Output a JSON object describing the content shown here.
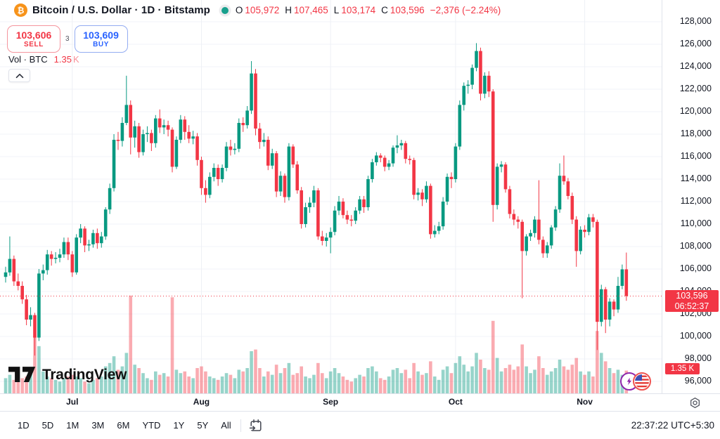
{
  "header": {
    "symbol_icon": "₿",
    "title": "Bitcoin / U.S. Dollar · 1D · Bitstamp",
    "ohlc": {
      "o_label": "O",
      "o": "105,972",
      "h_label": "H",
      "h": "107,465",
      "l_label": "L",
      "l": "103,174",
      "c_label": "C",
      "c": "103,596",
      "change": "−2,376 (−2.24%)"
    },
    "sell": {
      "price": "103,606",
      "label": "SELL"
    },
    "spread": "3",
    "buy": {
      "price": "103,609",
      "label": "BUY"
    },
    "volume": {
      "label": "Vol · BTC",
      "value": "1.35",
      "unit": "K"
    }
  },
  "price_axis": {
    "ticks": [
      "128,000",
      "126,000",
      "124,000",
      "122,000",
      "120,000",
      "118,000",
      "116,000",
      "114,000",
      "112,000",
      "110,000",
      "108,000",
      "106,000",
      "104,000",
      "102,000",
      "100,000",
      "98,000",
      "96,000"
    ],
    "current_price": "103,596",
    "countdown": "06:52:37",
    "volume_tag": "1.35 K"
  },
  "time_axis": {
    "months": [
      {
        "label": "Jul",
        "index": 16
      },
      {
        "label": "Aug",
        "index": 47
      },
      {
        "label": "Sep",
        "index": 78
      },
      {
        "label": "Oct",
        "index": 108
      },
      {
        "label": "Nov",
        "index": 139
      }
    ]
  },
  "toolbar": {
    "ranges": [
      "1D",
      "5D",
      "1M",
      "3M",
      "6M",
      "YTD",
      "1Y",
      "5Y",
      "All"
    ],
    "clock": "22:37:22 UTC+5:30"
  },
  "watermark": "TradingView",
  "colors": {
    "up": "#089981",
    "down": "#f23645",
    "buy_blue": "#2962ff",
    "bitcoin_orange": "#f7931a",
    "label_bg": "#f23645"
  },
  "chart_data": {
    "type": "candlestick",
    "symbol": "BTC/USD",
    "exchange": "Bitstamp",
    "interval": "1D",
    "title": "Bitcoin / U.S. Dollar · 1D · Bitstamp",
    "ylim": [
      96000,
      128000
    ],
    "grid": true,
    "current_price": 103596,
    "price_axis_ticks": [
      128000,
      126000,
      124000,
      122000,
      120000,
      118000,
      116000,
      114000,
      112000,
      110000,
      108000,
      106000,
      104000,
      102000,
      100000,
      98000,
      96000
    ],
    "month_labels": [
      "Jul",
      "Aug",
      "Sep",
      "Oct",
      "Nov"
    ],
    "month_start_indices": [
      16,
      47,
      78,
      108,
      139
    ],
    "candles": [
      [
        105300,
        106200,
        104800,
        105700
      ],
      [
        105700,
        108900,
        105400,
        106900
      ],
      [
        106900,
        107200,
        104500,
        104900
      ],
      [
        104900,
        105600,
        104100,
        104500
      ],
      [
        104500,
        104900,
        102900,
        103300
      ],
      [
        103300,
        103700,
        101000,
        101500
      ],
      [
        101500,
        102600,
        100900,
        101900
      ],
      [
        101900,
        102100,
        98300,
        99900
      ],
      [
        99900,
        106000,
        99600,
        105600
      ],
      [
        105600,
        106400,
        105000,
        105900
      ],
      [
        105900,
        107700,
        105500,
        107300
      ],
      [
        107300,
        107600,
        106300,
        106900
      ],
      [
        106900,
        107500,
        106500,
        107000
      ],
      [
        107000,
        107800,
        106600,
        107300
      ],
      [
        107300,
        108800,
        107000,
        108400
      ],
      [
        108400,
        108800,
        106800,
        107300
      ],
      [
        107300,
        107600,
        105300,
        105700
      ],
      [
        105700,
        109100,
        105500,
        108800
      ],
      [
        108800,
        110000,
        108300,
        109600
      ],
      [
        109600,
        109800,
        107500,
        108100
      ],
      [
        108100,
        108600,
        107600,
        108200
      ],
      [
        108200,
        109500,
        107900,
        109200
      ],
      [
        109200,
        109600,
        107800,
        108300
      ],
      [
        108300,
        109300,
        107900,
        108900
      ],
      [
        108900,
        111500,
        108600,
        111300
      ],
      [
        111300,
        113600,
        110900,
        113200
      ],
      [
        113200,
        118000,
        112900,
        117500
      ],
      [
        117500,
        118200,
        116600,
        117400
      ],
      [
        117400,
        119500,
        116900,
        119000
      ],
      [
        119000,
        123200,
        118800,
        120600
      ],
      [
        120600,
        121000,
        116200,
        117700
      ],
      [
        117700,
        119200,
        116800,
        118700
      ],
      [
        118700,
        119000,
        115900,
        116400
      ],
      [
        116400,
        118400,
        116100,
        118000
      ],
      [
        118000,
        118700,
        117300,
        118100
      ],
      [
        118100,
        118400,
        116500,
        117200
      ],
      [
        117200,
        119700,
        116800,
        119400
      ],
      [
        119400,
        120200,
        118100,
        118600
      ],
      [
        118600,
        119300,
        118000,
        118800
      ],
      [
        118800,
        119200,
        117800,
        118400
      ],
      [
        118400,
        118600,
        114600,
        115100
      ],
      [
        115100,
        117800,
        114900,
        117500
      ],
      [
        117500,
        119700,
        117200,
        119300
      ],
      [
        119300,
        119600,
        117500,
        118200
      ],
      [
        118200,
        118800,
        117200,
        117600
      ],
      [
        117600,
        118300,
        117100,
        117800
      ],
      [
        117800,
        118100,
        115200,
        115700
      ],
      [
        115700,
        116000,
        112600,
        113200
      ],
      [
        113200,
        113900,
        111900,
        112600
      ],
      [
        112600,
        114600,
        112300,
        114200
      ],
      [
        114200,
        115400,
        113800,
        115000
      ],
      [
        115000,
        115300,
        113400,
        114000
      ],
      [
        114000,
        115300,
        113700,
        115000
      ],
      [
        115000,
        117300,
        114700,
        116900
      ],
      [
        116900,
        117500,
        116100,
        116600
      ],
      [
        116600,
        117200,
        116200,
        116700
      ],
      [
        116700,
        119400,
        116400,
        119000
      ],
      [
        119000,
        119500,
        118200,
        118800
      ],
      [
        118800,
        120500,
        118500,
        120100
      ],
      [
        120100,
        124500,
        119800,
        123400
      ],
      [
        123400,
        123800,
        117900,
        118500
      ],
      [
        118500,
        119000,
        116700,
        117300
      ],
      [
        117300,
        118100,
        116900,
        117500
      ],
      [
        117500,
        117800,
        114800,
        115200
      ],
      [
        115200,
        116700,
        114900,
        116300
      ],
      [
        116300,
        116500,
        112400,
        112900
      ],
      [
        112900,
        114700,
        112500,
        114300
      ],
      [
        114300,
        114500,
        111900,
        112400
      ],
      [
        112400,
        117200,
        112100,
        116900
      ],
      [
        116900,
        117100,
        115000,
        115300
      ],
      [
        115300,
        115600,
        112700,
        113000
      ],
      [
        113000,
        113300,
        109600,
        110000
      ],
      [
        110000,
        111900,
        109700,
        111500
      ],
      [
        111500,
        112400,
        111000,
        111900
      ],
      [
        111900,
        113400,
        111500,
        113000
      ],
      [
        113000,
        113200,
        108600,
        108900
      ],
      [
        108900,
        109400,
        108100,
        108500
      ],
      [
        108500,
        109200,
        108000,
        108800
      ],
      [
        108800,
        109700,
        107400,
        109300
      ],
      [
        109300,
        111600,
        109000,
        111200
      ],
      [
        111200,
        112500,
        110800,
        112000
      ],
      [
        112000,
        112300,
        110500,
        110800
      ],
      [
        110800,
        111200,
        110000,
        110400
      ],
      [
        110400,
        110800,
        109800,
        110300
      ],
      [
        110300,
        111500,
        110000,
        111200
      ],
      [
        111200,
        112500,
        110900,
        112200
      ],
      [
        112200,
        112500,
        111000,
        111500
      ],
      [
        111500,
        114300,
        111200,
        114000
      ],
      [
        114000,
        115800,
        113700,
        115500
      ],
      [
        115500,
        116400,
        115200,
        116100
      ],
      [
        116100,
        116300,
        115500,
        115900
      ],
      [
        115900,
        116100,
        114700,
        115100
      ],
      [
        115100,
        115700,
        114800,
        115400
      ],
      [
        115400,
        117000,
        115100,
        116800
      ],
      [
        116800,
        117900,
        116300,
        117000
      ],
      [
        117000,
        117500,
        116600,
        117200
      ],
      [
        117200,
        117400,
        115400,
        115800
      ],
      [
        115800,
        116100,
        115300,
        115700
      ],
      [
        115700,
        115900,
        112200,
        112600
      ],
      [
        112600,
        113200,
        112100,
        112800
      ],
      [
        112800,
        113100,
        111600,
        112200
      ],
      [
        112200,
        113800,
        111900,
        113400
      ],
      [
        113400,
        113600,
        108700,
        109100
      ],
      [
        109100,
        109900,
        108800,
        109400
      ],
      [
        109400,
        110200,
        109100,
        109800
      ],
      [
        109800,
        112400,
        109500,
        112000
      ],
      [
        112000,
        114500,
        111700,
        114200
      ],
      [
        114200,
        114600,
        113200,
        114000
      ],
      [
        114000,
        117200,
        113700,
        116900
      ],
      [
        116900,
        121000,
        116600,
        120600
      ],
      [
        120600,
        122600,
        120100,
        122300
      ],
      [
        122300,
        122800,
        121600,
        122400
      ],
      [
        122400,
        124200,
        122000,
        123900
      ],
      [
        123900,
        126100,
        123600,
        125400
      ],
      [
        125400,
        125700,
        121000,
        121600
      ],
      [
        121600,
        123500,
        121200,
        123200
      ],
      [
        123200,
        123600,
        121300,
        121800
      ],
      [
        121800,
        122000,
        110200,
        111700
      ],
      [
        111700,
        115400,
        111300,
        115100
      ],
      [
        115100,
        115600,
        114600,
        115300
      ],
      [
        115300,
        115500,
        112800,
        113100
      ],
      [
        113100,
        113400,
        110500,
        110900
      ],
      [
        110900,
        111300,
        109900,
        110400
      ],
      [
        110400,
        110700,
        109600,
        110200
      ],
      [
        110200,
        110400,
        103400,
        107600
      ],
      [
        107600,
        109100,
        107200,
        108900
      ],
      [
        108900,
        109500,
        108500,
        109200
      ],
      [
        109200,
        110700,
        108800,
        110400
      ],
      [
        110400,
        113900,
        108200,
        108600
      ],
      [
        108600,
        108900,
        107000,
        107400
      ],
      [
        107400,
        108400,
        107000,
        108100
      ],
      [
        108100,
        109900,
        107800,
        109700
      ],
      [
        109700,
        111600,
        109400,
        111300
      ],
      [
        111300,
        115400,
        111000,
        114300
      ],
      [
        114300,
        116100,
        113500,
        113800
      ],
      [
        113800,
        114100,
        112200,
        112500
      ],
      [
        112500,
        112800,
        110000,
        110400
      ],
      [
        110400,
        110700,
        106200,
        107600
      ],
      [
        107600,
        109800,
        107300,
        109500
      ],
      [
        109500,
        109900,
        108800,
        109300
      ],
      [
        109300,
        110900,
        109000,
        110600
      ],
      [
        110600,
        110900,
        109700,
        110200
      ],
      [
        110200,
        110400,
        98800,
        101300
      ],
      [
        101300,
        104600,
        100900,
        104200
      ],
      [
        104200,
        104400,
        100300,
        101500
      ],
      [
        101500,
        103400,
        100900,
        103100
      ],
      [
        103100,
        103300,
        101800,
        102400
      ],
      [
        102400,
        105300,
        102100,
        104500
      ],
      [
        104500,
        106400,
        104200,
        105970
      ],
      [
        105972,
        107465,
        103174,
        103596
      ]
    ],
    "volumes_k_btc": [
      0.9,
      1.1,
      0.8,
      0.7,
      0.9,
      1.0,
      1.2,
      3.4,
      2.8,
      1.3,
      1.0,
      0.9,
      0.8,
      0.7,
      0.9,
      1.0,
      1.1,
      1.0,
      0.9,
      0.7,
      0.6,
      0.8,
      0.9,
      1.0,
      1.6,
      1.8,
      2.2,
      1.4,
      1.6,
      2.4,
      5.8,
      1.7,
      1.5,
      1.2,
      0.9,
      0.8,
      1.3,
      1.1,
      1.2,
      1.0,
      5.7,
      1.4,
      1.2,
      1.3,
      1.0,
      0.9,
      1.5,
      1.6,
      1.3,
      1.0,
      0.9,
      0.8,
      1.0,
      1.2,
      1.1,
      0.9,
      1.4,
      1.3,
      1.5,
      2.5,
      2.6,
      1.5,
      1.0,
      1.3,
      1.1,
      1.7,
      1.2,
      1.5,
      1.8,
      1.1,
      1.2,
      1.6,
      1.0,
      0.9,
      1.1,
      1.8,
      1.2,
      0.9,
      1.3,
      1.5,
      1.2,
      1.0,
      0.8,
      0.7,
      0.9,
      1.1,
      1.0,
      1.5,
      1.6,
      1.3,
      0.9,
      0.8,
      1.0,
      1.4,
      1.5,
      1.2,
      1.4,
      0.9,
      1.8,
      1.3,
      1.1,
      1.2,
      1.9,
      1.0,
      0.8,
      1.4,
      1.6,
      1.2,
      1.8,
      2.2,
      1.7,
      1.3,
      1.6,
      2.4,
      2.0,
      1.5,
      1.4,
      4.3,
      2.1,
      1.3,
      1.5,
      1.7,
      1.4,
      1.6,
      2.9,
      1.6,
      1.2,
      1.4,
      2.2,
      1.5,
      1.1,
      1.3,
      1.5,
      2.0,
      1.6,
      1.4,
      1.7,
      2.1,
      1.3,
      1.1,
      1.3,
      1.0,
      3.7,
      2.4,
      1.9,
      1.5,
      1.2,
      1.4,
      1.1,
      1.35
    ]
  }
}
